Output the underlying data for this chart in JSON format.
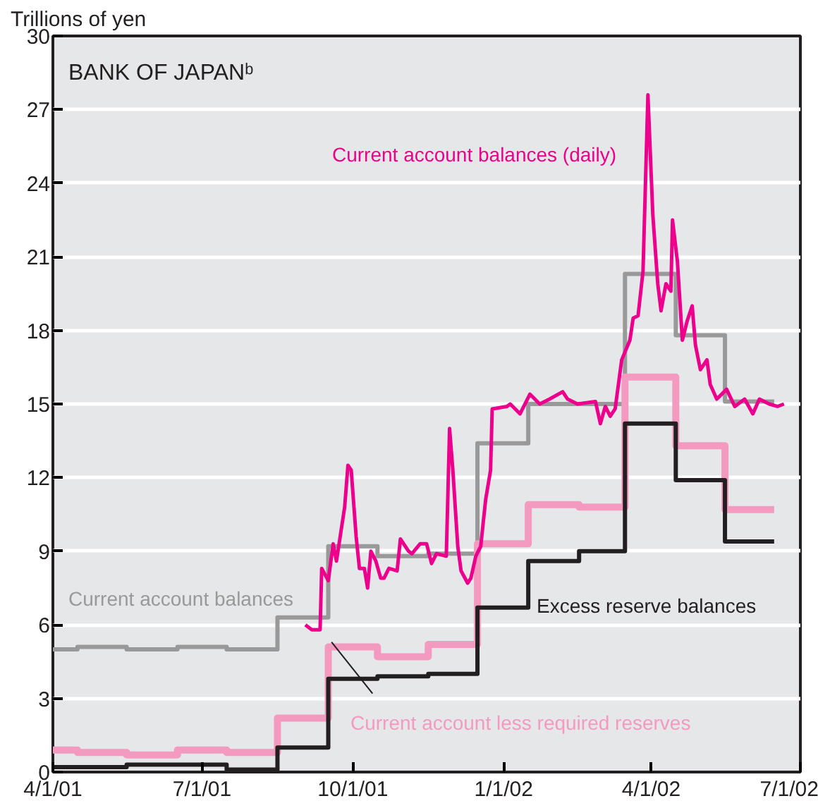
{
  "chart_data": {
    "type": "step",
    "title": "BANK OF JAPANᵇ",
    "ylabel": "Trillions of yen",
    "xlim": [
      "2001-04-01",
      "2002-07-01"
    ],
    "xticks": [
      {
        "value": "2001-04-01",
        "label": "4/1/01"
      },
      {
        "value": "2001-07-01",
        "label": "7/1/01"
      },
      {
        "value": "2001-10-01",
        "label": "10/1/01"
      },
      {
        "value": "2002-01-01",
        "label": "1/1/02"
      },
      {
        "value": "2002-04-01",
        "label": "4/1/02"
      },
      {
        "value": "2002-07-01",
        "label": "7/1/02"
      }
    ],
    "ylim": [
      0,
      30
    ],
    "yticks": [
      0,
      3,
      6,
      9,
      12,
      15,
      18,
      21,
      24,
      27,
      30
    ],
    "grid": "y",
    "series": [
      {
        "name": "Current account balances",
        "color": "#999999",
        "x": [
          "2001-04-01",
          "2001-04-16",
          "2001-05-16",
          "2001-06-16",
          "2001-07-16",
          "2001-08-16",
          "2001-09-16",
          "2001-10-16",
          "2001-11-16",
          "2001-12-16",
          "2002-01-16",
          "2002-02-16",
          "2002-03-16",
          "2002-04-16",
          "2002-05-16",
          "2002-06-15"
        ],
        "values": [
          5.0,
          5.1,
          5.0,
          5.1,
          5.0,
          6.3,
          9.2,
          8.8,
          8.9,
          13.4,
          15.0,
          15.0,
          20.3,
          17.8,
          15.1,
          15.1
        ]
      },
      {
        "name": "Current account less required reserves",
        "color": "#f49ac1",
        "x": [
          "2001-04-01",
          "2001-04-16",
          "2001-05-16",
          "2001-06-16",
          "2001-07-16",
          "2001-08-16",
          "2001-09-16",
          "2001-10-16",
          "2001-11-16",
          "2001-12-16",
          "2002-01-16",
          "2002-02-16",
          "2002-03-16",
          "2002-04-16",
          "2002-05-16",
          "2002-06-15"
        ],
        "values": [
          0.9,
          0.8,
          0.7,
          0.9,
          0.8,
          2.2,
          5.1,
          4.7,
          5.2,
          9.3,
          10.9,
          10.8,
          16.1,
          13.3,
          10.7,
          10.7
        ]
      },
      {
        "name": "Excess reserve balances",
        "color": "#231f20",
        "x": [
          "2001-04-01",
          "2001-04-16",
          "2001-05-16",
          "2001-06-16",
          "2001-07-16",
          "2001-08-16",
          "2001-09-16",
          "2001-10-16",
          "2001-11-16",
          "2001-12-16",
          "2002-01-16",
          "2002-02-16",
          "2002-03-16",
          "2002-04-16",
          "2002-05-16",
          "2002-06-15"
        ],
        "values": [
          0.2,
          0.2,
          0.3,
          0.3,
          0.1,
          1.0,
          3.8,
          3.9,
          4.0,
          6.7,
          8.6,
          9.0,
          14.2,
          11.9,
          9.4,
          9.4
        ]
      },
      {
        "name": "Current account balances (daily)",
        "type": "line",
        "color": "#ec008c",
        "x": [
          "2001-09-02",
          "2001-09-06",
          "2001-09-11",
          "2001-09-12",
          "2001-09-16",
          "2001-09-19",
          "2001-09-21",
          "2001-09-26",
          "2001-09-28",
          "2001-09-30",
          "2001-10-03",
          "2001-10-05",
          "2001-10-08",
          "2001-10-10",
          "2001-10-12",
          "2001-10-15",
          "2001-10-18",
          "2001-10-20",
          "2001-10-23",
          "2001-10-28",
          "2001-10-30",
          "2001-11-04",
          "2001-11-06",
          "2001-11-11",
          "2001-11-15",
          "2001-11-18",
          "2001-11-21",
          "2001-11-27",
          "2001-11-29",
          "2001-12-01",
          "2001-12-04",
          "2001-12-06",
          "2001-12-10",
          "2001-12-12",
          "2001-12-15",
          "2001-12-18",
          "2001-12-21",
          "2001-12-24",
          "2001-12-25",
          "2002-01-03",
          "2002-01-05",
          "2002-01-11",
          "2002-01-17",
          "2002-01-23",
          "2002-01-29",
          "2002-02-06",
          "2002-02-09",
          "2002-02-15",
          "2002-02-26",
          "2002-03-01",
          "2002-03-04",
          "2002-03-07",
          "2002-03-10",
          "2002-03-14",
          "2002-03-19",
          "2002-03-21",
          "2002-03-24",
          "2002-03-27",
          "2002-03-30",
          "2002-04-02",
          "2002-04-05",
          "2002-04-07",
          "2002-04-10",
          "2002-04-13",
          "2002-04-14",
          "2002-04-17",
          "2002-04-20",
          "2002-04-23",
          "2002-04-26",
          "2002-04-28",
          "2002-05-01",
          "2002-05-05",
          "2002-05-07",
          "2002-05-11",
          "2002-05-17",
          "2002-05-22",
          "2002-05-28",
          "2002-06-02",
          "2002-06-06",
          "2002-06-12",
          "2002-06-17",
          "2002-06-21"
        ],
        "values": [
          6.0,
          5.8,
          5.8,
          8.3,
          7.8,
          9.3,
          8.6,
          10.8,
          12.5,
          12.3,
          9.6,
          8.3,
          8.3,
          7.5,
          9.0,
          8.6,
          7.9,
          7.9,
          8.3,
          8.2,
          9.5,
          9.0,
          8.9,
          9.3,
          9.3,
          8.5,
          8.9,
          8.8,
          14.0,
          12.3,
          9.2,
          8.2,
          7.7,
          7.9,
          8.8,
          9.2,
          11.1,
          12.3,
          14.8,
          14.9,
          15.0,
          14.6,
          15.4,
          15.0,
          15.2,
          15.5,
          15.2,
          15.0,
          15.1,
          14.2,
          14.9,
          14.5,
          14.8,
          16.8,
          17.6,
          18.5,
          18.6,
          20.4,
          27.6,
          22.7,
          19.9,
          18.8,
          19.9,
          19.6,
          22.5,
          20.8,
          17.6,
          18.4,
          19.0,
          17.4,
          16.4,
          16.8,
          15.8,
          15.2,
          15.6,
          14.9,
          15.2,
          14.6,
          15.2,
          15.0,
          14.9,
          15.0
        ]
      }
    ]
  }
}
